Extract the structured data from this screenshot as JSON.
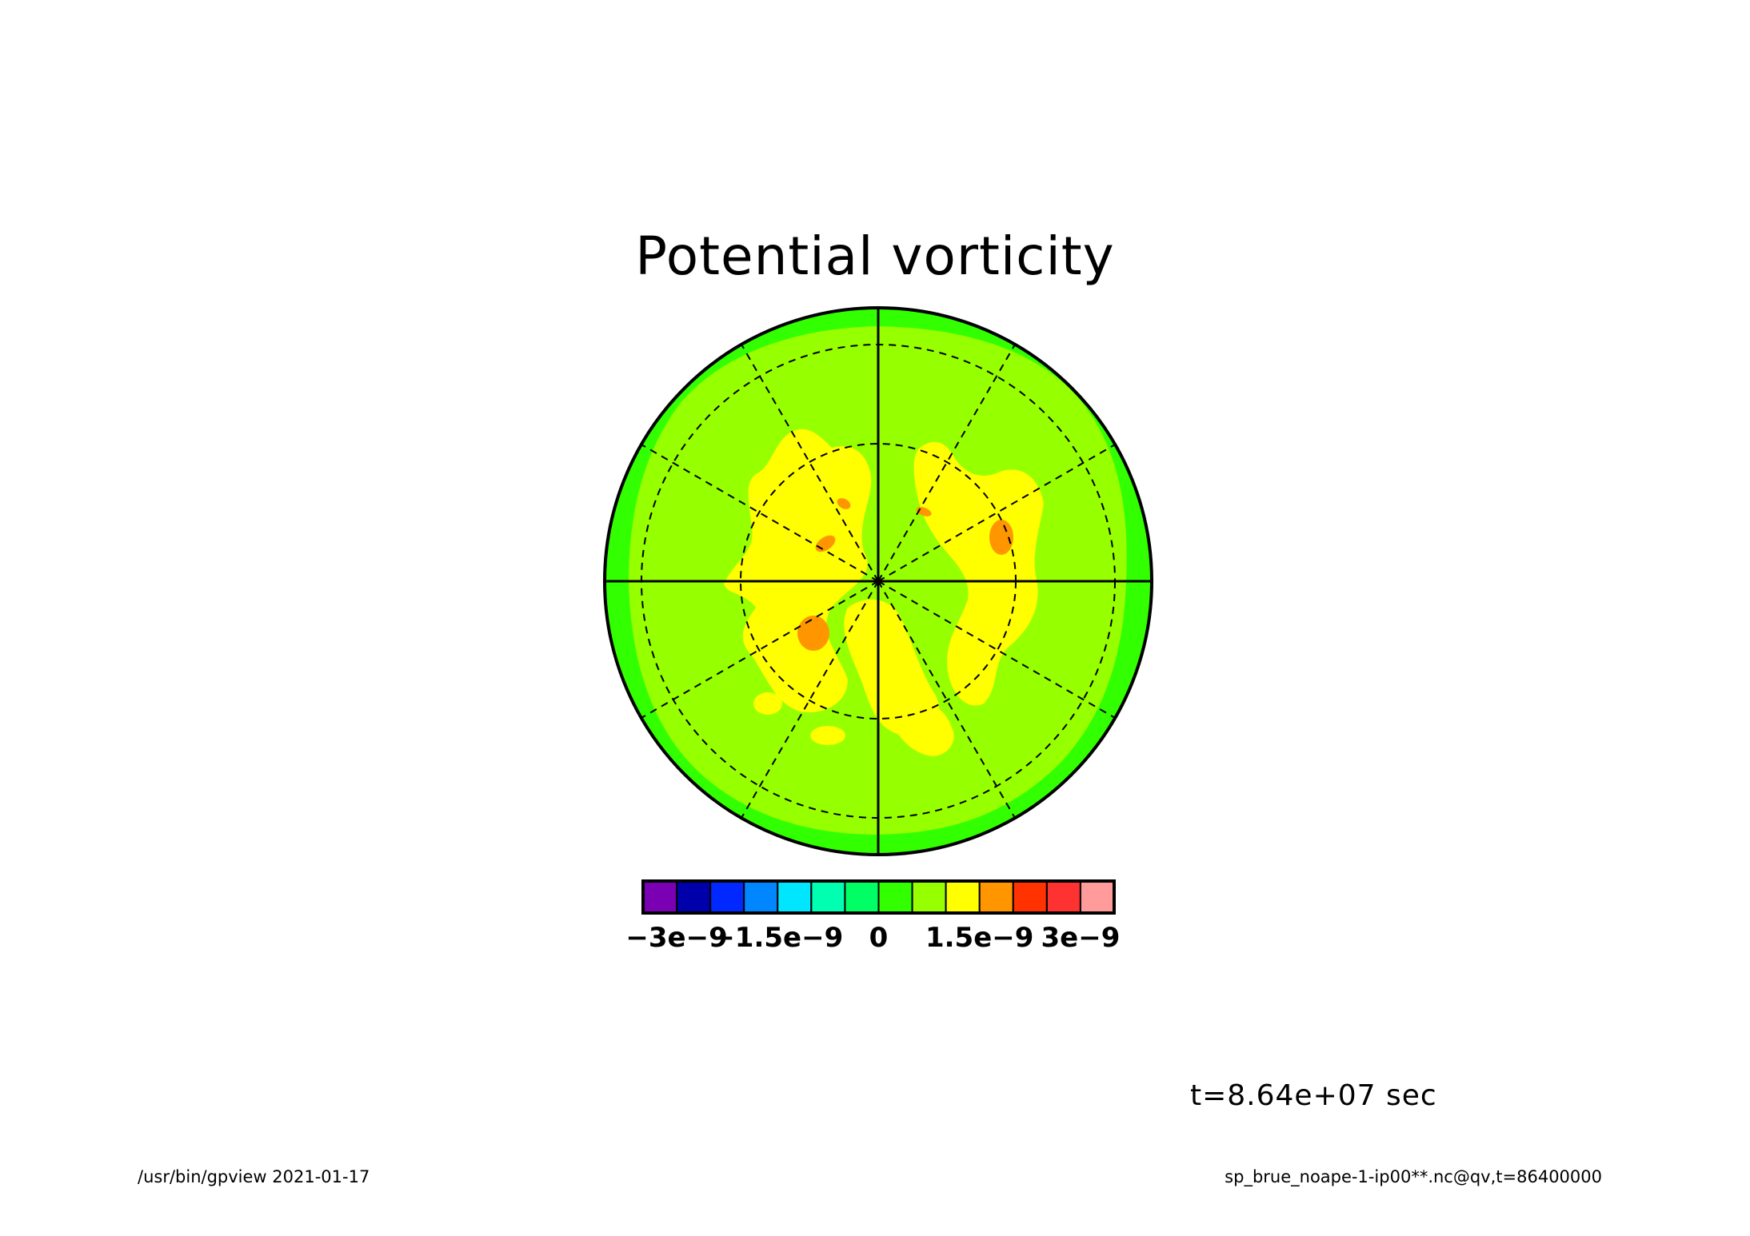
{
  "figure": {
    "title": "Potential vorticity",
    "time_label": "t=8.64e+07 sec",
    "footer_left": "/usr/bin/gpview  2021-01-17",
    "footer_right": "sp_brue_noape-1-ip00**.nc@qv,t=86400000"
  },
  "chart_data": {
    "type": "heatmap",
    "title": "Potential vorticity",
    "projection": "polar stereographic (south pole)",
    "grid": true,
    "latitude_circles_dashed": 2,
    "meridians_dashed": true,
    "colorbar": {
      "placement": "bottom",
      "levels": [
        -3.5e-09,
        -3e-09,
        -2.5e-09,
        -2e-09,
        -1.5e-09,
        -1e-09,
        -5e-10,
        0,
        5e-10,
        1e-09,
        1.5e-09,
        2e-09,
        2.5e-09,
        3e-09,
        3.5e-09
      ],
      "colors": [
        "#7b00b4",
        "#0000aa",
        "#0028ff",
        "#0087ff",
        "#00e6ff",
        "#00ffb0",
        "#00ff64",
        "#32ff00",
        "#96ff00",
        "#ffff00",
        "#ff9600",
        "#ff3200",
        "#ff3232",
        "#ff9b9b"
      ],
      "tick_labels": [
        "−3e−9",
        "−1.5e−9",
        "0",
        "1.5e−9",
        "3e−9"
      ],
      "tick_values": [
        -3e-09,
        -1.5e-09,
        0,
        1.5e-09,
        3e-09
      ]
    },
    "regions": [
      {
        "band": "outer ring",
        "range": [
          0,
          5e-10
        ],
        "color": "#32ff00"
      },
      {
        "band": "mid latitudes",
        "range": [
          5e-10,
          1e-09
        ],
        "color": "#96ff00"
      },
      {
        "band": "polar patches",
        "range": [
          1e-09,
          1.5e-09
        ],
        "color": "#ffff00"
      },
      {
        "band": "small maxima",
        "range": [
          1.5e-09,
          2e-09
        ],
        "color": "#ff9600"
      }
    ]
  }
}
